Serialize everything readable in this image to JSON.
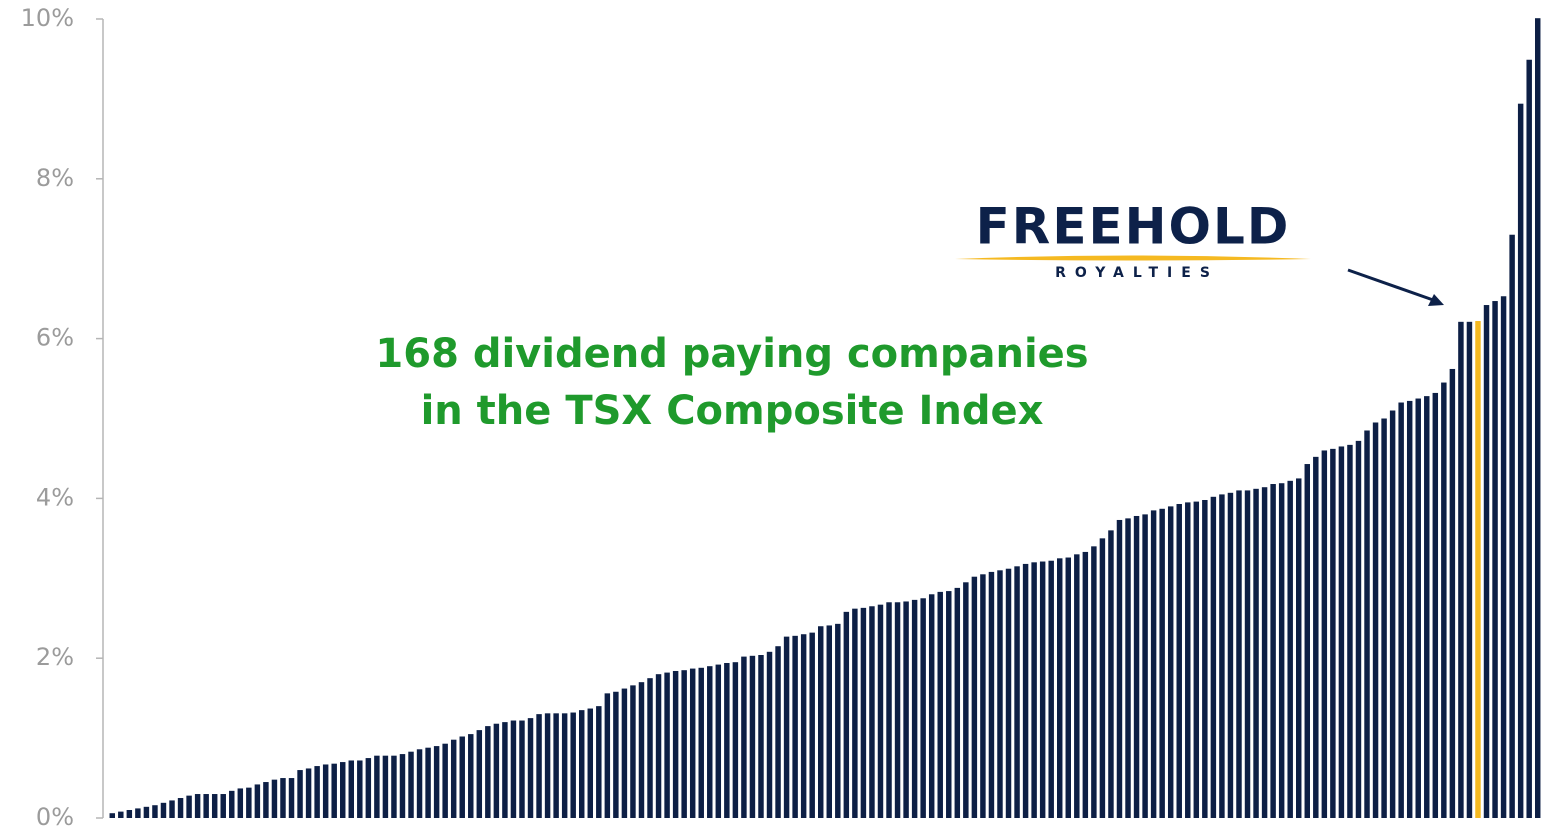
{
  "chart_data": {
    "type": "bar",
    "annotations": [
      "168 dividend paying companies",
      "in the TSX Composite Index"
    ],
    "logo": {
      "name": "FREEHOLD",
      "subtitle": "ROYALTIES"
    },
    "color": "#0d1f45",
    "highlight_index": 160,
    "highlight_color": "#f5b921",
    "values": [
      0.06,
      0.08,
      0.1,
      0.12,
      0.14,
      0.16,
      0.19,
      0.22,
      0.25,
      0.28,
      0.3,
      0.3,
      0.3,
      0.3,
      0.34,
      0.37,
      0.38,
      0.42,
      0.45,
      0.48,
      0.5,
      0.5,
      0.6,
      0.62,
      0.65,
      0.67,
      0.68,
      0.7,
      0.72,
      0.72,
      0.75,
      0.78,
      0.78,
      0.78,
      0.8,
      0.83,
      0.86,
      0.88,
      0.9,
      0.93,
      0.98,
      1.02,
      1.05,
      1.1,
      1.15,
      1.18,
      1.2,
      1.22,
      1.22,
      1.25,
      1.3,
      1.31,
      1.31,
      1.31,
      1.32,
      1.35,
      1.37,
      1.4,
      1.56,
      1.58,
      1.62,
      1.66,
      1.7,
      1.75,
      1.8,
      1.82,
      1.84,
      1.85,
      1.87,
      1.88,
      1.9,
      1.92,
      1.94,
      1.95,
      2.02,
      2.03,
      2.04,
      2.08,
      2.15,
      2.27,
      2.28,
      2.3,
      2.32,
      2.4,
      2.41,
      2.43,
      2.58,
      2.62,
      2.63,
      2.65,
      2.67,
      2.7,
      2.7,
      2.71,
      2.73,
      2.75,
      2.8,
      2.83,
      2.84,
      2.88,
      2.95,
      3.02,
      3.05,
      3.08,
      3.1,
      3.12,
      3.15,
      3.18,
      3.2,
      3.21,
      3.22,
      3.25,
      3.26,
      3.3,
      3.33,
      3.4,
      3.5,
      3.6,
      3.73,
      3.75,
      3.78,
      3.8,
      3.85,
      3.87,
      3.9,
      3.93,
      3.95,
      3.96,
      3.98,
      4.02,
      4.05,
      4.07,
      4.1,
      4.1,
      4.12,
      4.14,
      4.18,
      4.19,
      4.22,
      4.25,
      4.43,
      4.52,
      4.6,
      4.62,
      4.65,
      4.67,
      4.72,
      4.85,
      4.95,
      5.0,
      5.1,
      5.2,
      5.22,
      5.25,
      5.28,
      5.32,
      5.45,
      5.62,
      6.21,
      6.21,
      6.22,
      6.42,
      6.47,
      6.53,
      7.3,
      8.94,
      9.49,
      10.01
    ],
    "ylim": [
      0,
      10
    ],
    "yticks": [
      {
        "value": 0,
        "label": "0%"
      },
      {
        "value": 2,
        "label": "2%"
      },
      {
        "value": 4,
        "label": "4%"
      },
      {
        "value": 6,
        "label": "6%"
      },
      {
        "value": 8,
        "label": "8%"
      },
      {
        "value": 10,
        "label": "10%"
      }
    ]
  }
}
